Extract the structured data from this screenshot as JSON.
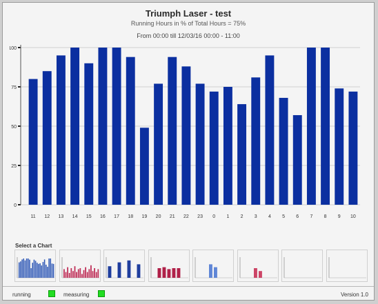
{
  "header": {
    "title": "Triumph Laser - test",
    "subtitle": "Running Hours in % of Total Hours = 75%",
    "range": "From 00:00 till 12/03/16 00:00 - 11:00"
  },
  "chart_data": {
    "type": "bar",
    "categories": [
      "11",
      "12",
      "13",
      "14",
      "15",
      "16",
      "17",
      "18",
      "19",
      "20",
      "21",
      "22",
      "23",
      "0",
      "1",
      "2",
      "3",
      "4",
      "5",
      "6",
      "7",
      "8",
      "9",
      "10"
    ],
    "values": [
      80,
      85,
      95,
      100,
      90,
      100,
      100,
      94,
      49,
      77,
      94,
      88,
      77,
      72,
      75,
      64,
      81,
      95,
      68,
      57,
      100,
      100,
      74,
      72
    ],
    "ylim": [
      0,
      100
    ],
    "yticks": [
      "0",
      "25",
      "50",
      "75",
      "100"
    ],
    "color": "#0b2fa0",
    "grid": "horizontal"
  },
  "thumbnails": {
    "label": "Select a Chart",
    "items": [
      {
        "title": "",
        "color": "#2c56b5",
        "values": [
          0.8,
          0.85,
          0.95,
          1,
          0.9,
          1,
          1,
          0.94,
          0.5,
          0.78,
          0.94,
          0.88,
          0.78,
          0.72,
          0.75,
          0.64,
          0.82,
          0.95,
          0.68,
          0.57,
          1,
          1,
          0.74,
          0.72
        ]
      },
      {
        "title": "",
        "color": "#c0325a",
        "values": [
          0.45,
          0.3,
          0.55,
          0.25,
          0.5,
          0.35,
          0.6,
          0.3,
          0.45,
          0.5,
          0.2,
          0.4,
          0.55,
          0.3,
          0.45,
          0.65,
          0.35,
          0.5,
          0.3,
          0.45
        ]
      },
      {
        "title": "",
        "color": "#1f3e9e",
        "values": [
          0.6,
          0,
          0.8,
          0,
          0.9,
          0,
          0.7
        ]
      },
      {
        "title": "",
        "color": "#b02048",
        "values": [
          0.5,
          0.55,
          0.45,
          0.5,
          0.5
        ]
      },
      {
        "title": "",
        "color": "#5f86d6",
        "values": [
          0.7,
          0.55
        ]
      },
      {
        "title": "",
        "color": "#cc4466",
        "values": [
          0.5,
          0.35
        ]
      },
      {
        "title": "",
        "color": "#999999",
        "values": []
      },
      {
        "title": "",
        "color": "#999999",
        "values": []
      }
    ]
  },
  "footer": {
    "legend1": "running",
    "legend2": "measuring",
    "legend_color": "#22dd22",
    "version": "Version 1.0"
  }
}
